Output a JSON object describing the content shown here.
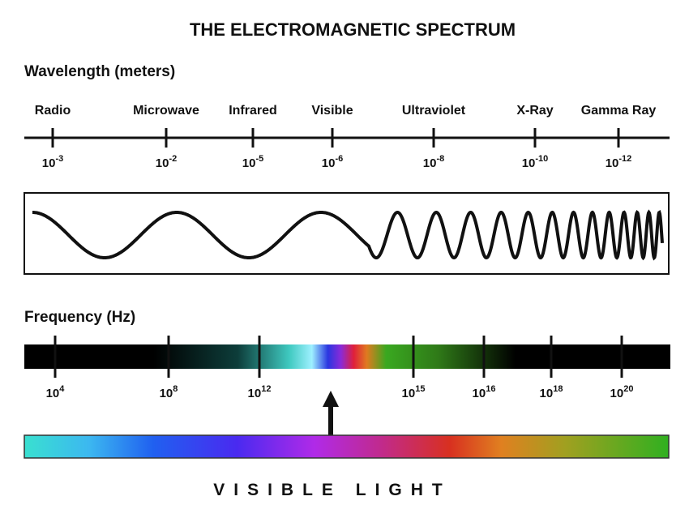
{
  "title": "THE ELECTROMAGNETIC SPECTRUM",
  "wavelength": {
    "label": "Wavelength (meters)",
    "bands": [
      {
        "name": "Radio",
        "tick": {
          "base": "10",
          "exp": "-3"
        }
      },
      {
        "name": "Microwave",
        "tick": {
          "base": "10",
          "exp": "-2"
        }
      },
      {
        "name": "Infrared",
        "tick": {
          "base": "10",
          "exp": "-5"
        }
      },
      {
        "name": "Visible",
        "tick": {
          "base": "10",
          "exp": "-6"
        }
      },
      {
        "name": "Ultraviolet",
        "tick": {
          "base": "10",
          "exp": "-8"
        }
      },
      {
        "name": "X-Ray",
        "tick": {
          "base": "10",
          "exp": "-10"
        }
      },
      {
        "name": "Gamma Ray",
        "tick": {
          "base": "10",
          "exp": "-12"
        }
      }
    ]
  },
  "frequency": {
    "label": "Frequency (Hz)",
    "ticks": [
      {
        "base": "10",
        "exp": "4"
      },
      {
        "base": "10",
        "exp": "8"
      },
      {
        "base": "10",
        "exp": "12"
      },
      {
        "base": "10",
        "exp": "15"
      },
      {
        "base": "10",
        "exp": "16"
      },
      {
        "base": "10",
        "exp": "18"
      },
      {
        "base": "10",
        "exp": "20"
      }
    ]
  },
  "visible_label": "VISIBLE LIGHT"
}
